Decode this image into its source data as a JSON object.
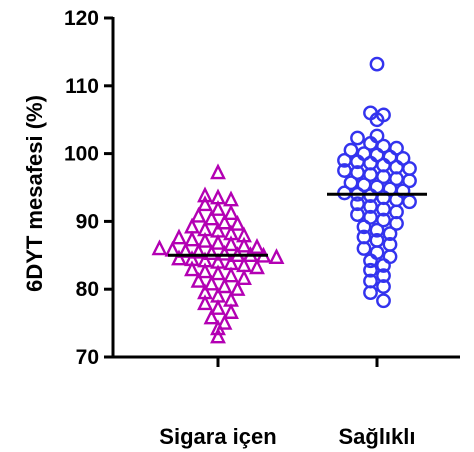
{
  "chart_data": {
    "type": "scatter",
    "title": "",
    "xlabel": "",
    "ylabel": "6DYT mesafesi (%)",
    "ylim": [
      70,
      120
    ],
    "yticks": [
      70,
      80,
      90,
      100,
      110,
      120
    ],
    "grid": false,
    "categories": [
      "Sigara içen",
      "Sağlıklı"
    ],
    "series": [
      {
        "category": "Sigara içen",
        "marker": "triangle",
        "color": "#B300B3",
        "median": 85,
        "values": [
          97.2,
          93.8,
          93.5,
          93.2,
          92.5,
          91.8,
          91.2,
          90.8,
          90.4,
          89.8,
          89.6,
          89.2,
          88.8,
          88.6,
          88.2,
          87.9,
          87.6,
          87.3,
          87.1,
          86.8,
          86.6,
          86.4,
          86.2,
          86.0,
          85.8,
          85.6,
          85.5,
          85.3,
          85.2,
          85.0,
          85.0,
          84.9,
          84.7,
          84.5,
          84.4,
          84.2,
          84.0,
          83.8,
          83.5,
          83.2,
          82.9,
          82.6,
          82.3,
          82.0,
          81.6,
          81.2,
          80.8,
          80.4,
          80.0,
          79.5,
          79.0,
          78.4,
          77.9,
          77.2,
          76.6,
          75.8,
          75.0,
          74.2,
          73.0
        ]
      },
      {
        "category": "Sağlıklı",
        "marker": "circle",
        "color": "#3333EE",
        "median": 94,
        "values": [
          113.2,
          106.0,
          105.7,
          105.0,
          102.6,
          102.3,
          101.5,
          101.1,
          100.8,
          100.5,
          100.0,
          99.8,
          99.5,
          99.3,
          99.0,
          98.8,
          98.6,
          98.3,
          98.0,
          97.8,
          97.5,
          97.2,
          96.9,
          96.6,
          96.3,
          96.0,
          95.7,
          95.4,
          95.1,
          94.8,
          94.5,
          94.2,
          94.0,
          93.8,
          93.5,
          93.2,
          92.9,
          92.6,
          92.2,
          91.8,
          91.4,
          91.0,
          90.6,
          90.2,
          89.7,
          89.2,
          88.7,
          88.2,
          87.7,
          87.2,
          86.6,
          86.0,
          85.4,
          84.8,
          84.2,
          83.5,
          82.8,
          82.0,
          81.2,
          80.4,
          79.5,
          78.3
        ]
      }
    ]
  }
}
